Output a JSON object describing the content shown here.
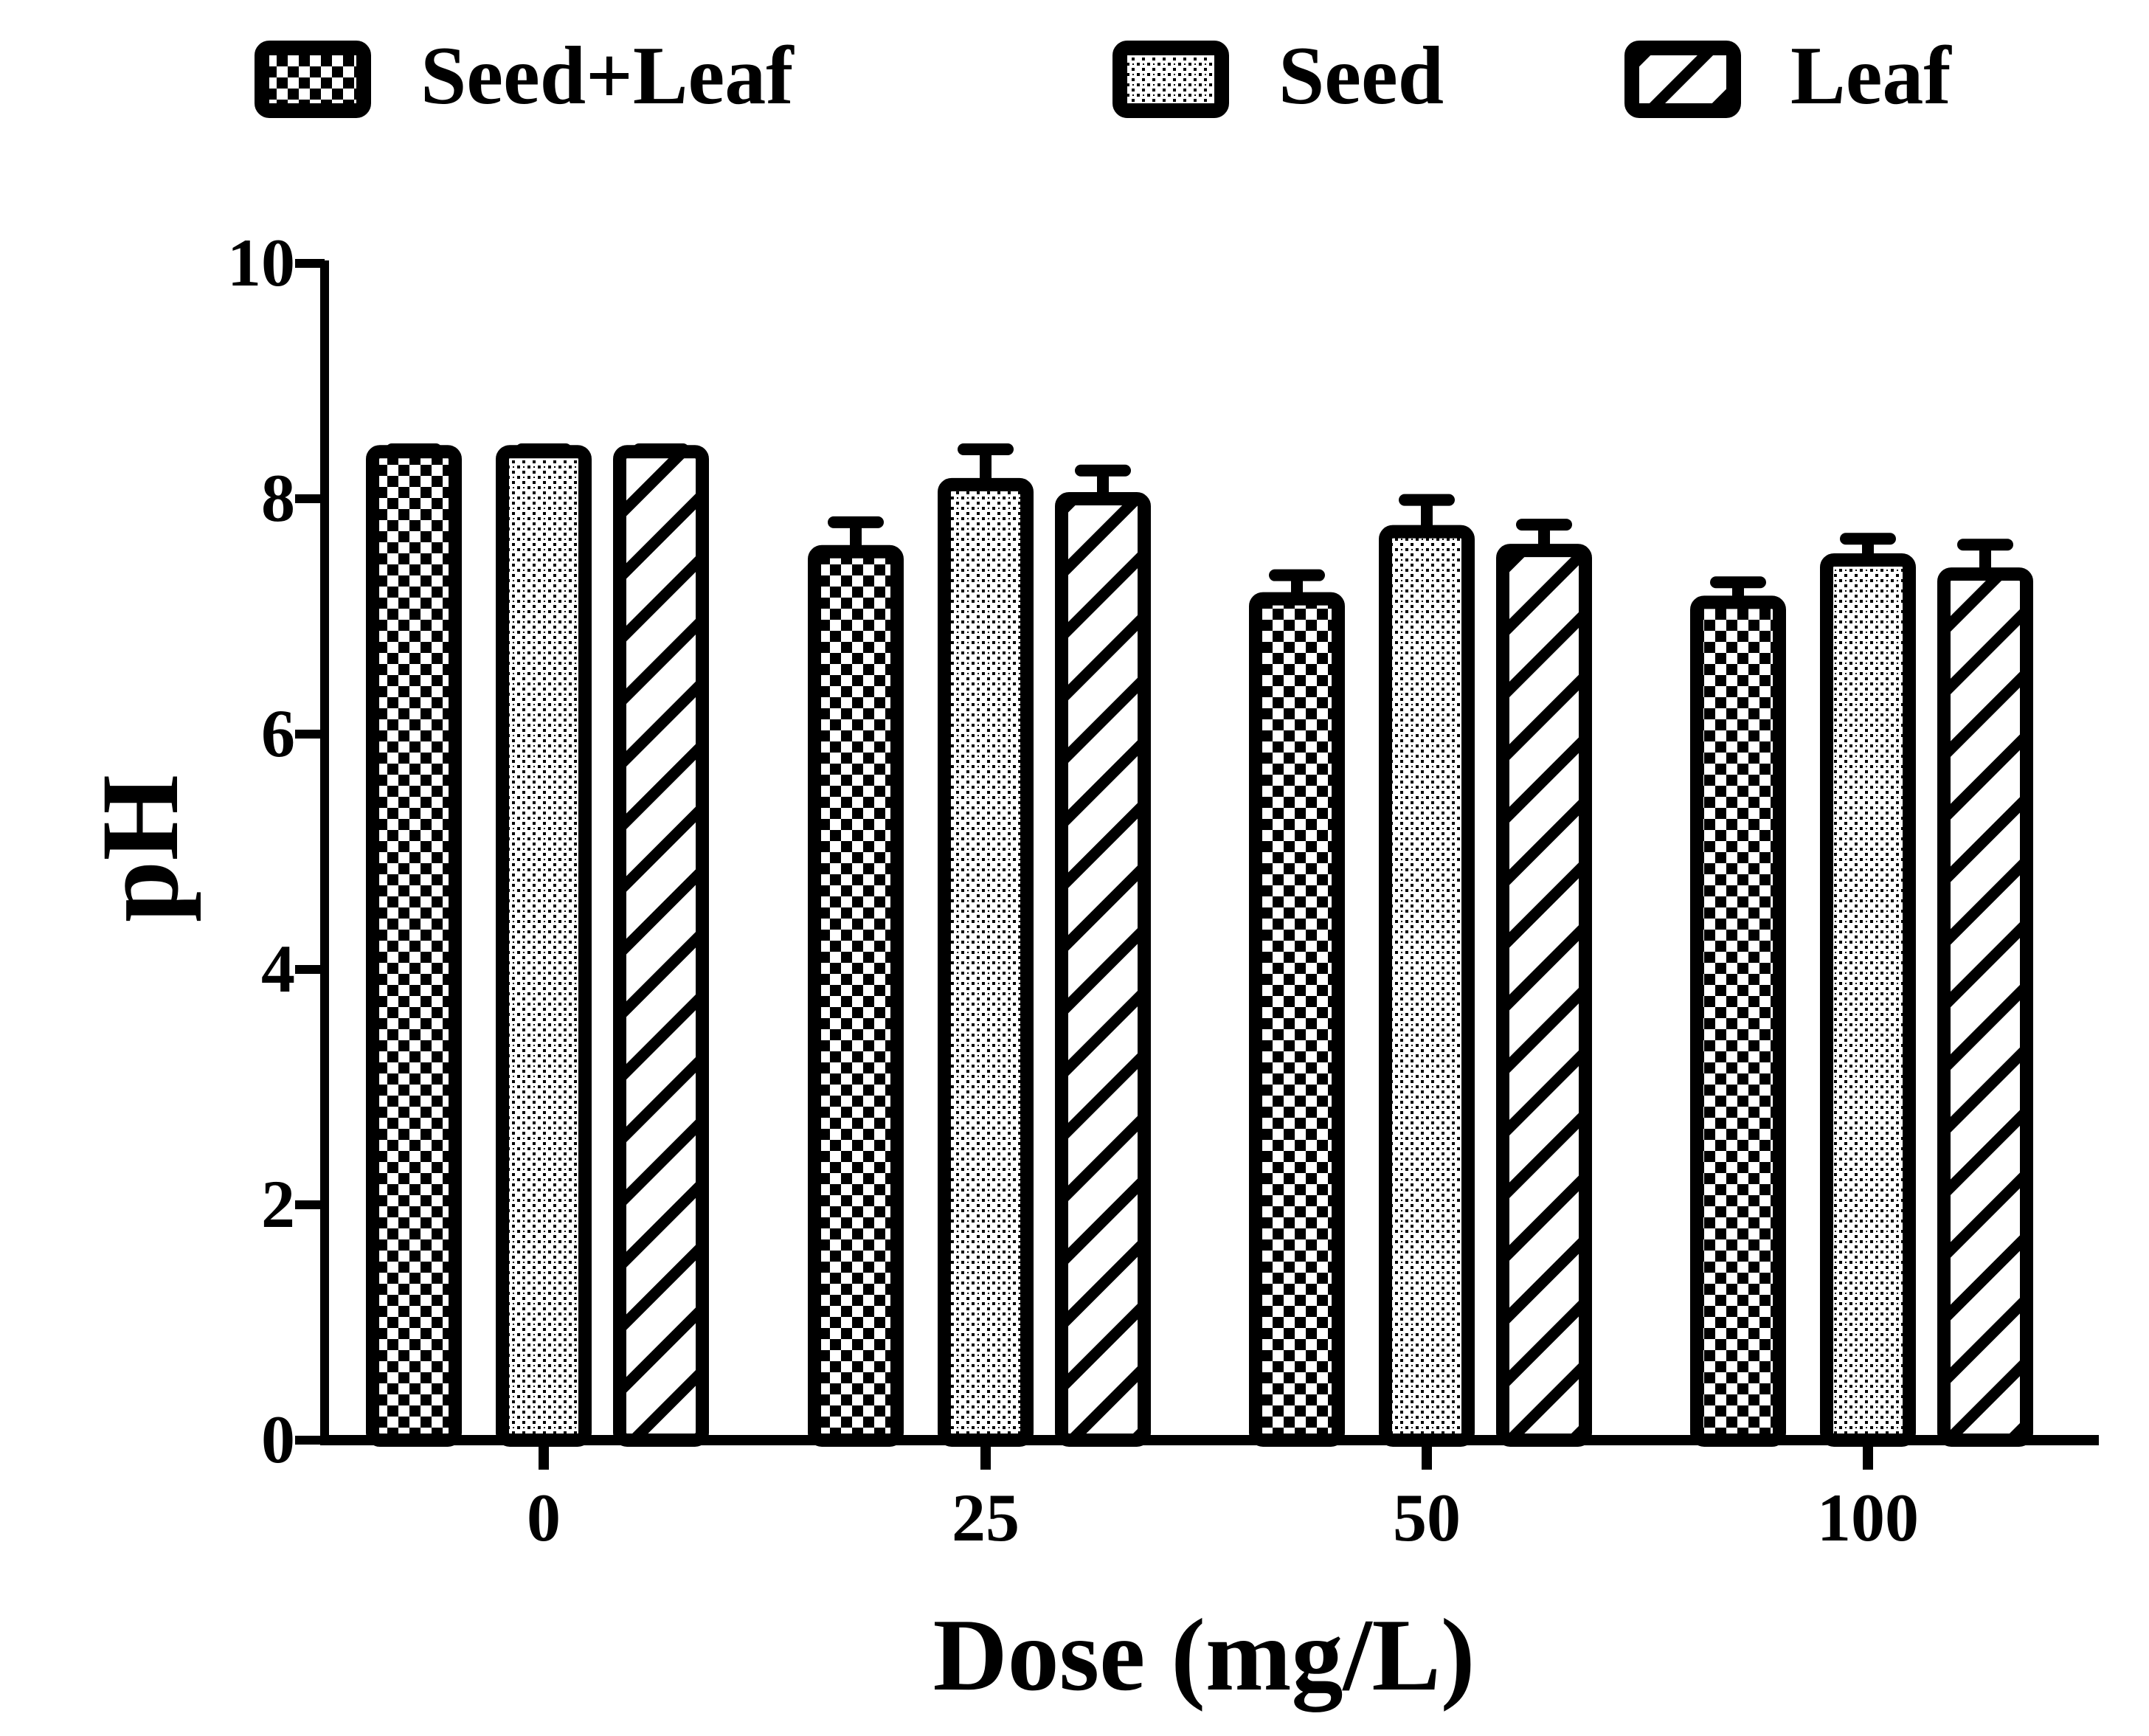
{
  "chart_data": {
    "type": "bar",
    "title": "",
    "xlabel": "Dose (mg/L)",
    "ylabel": "pH",
    "categories": [
      "0",
      "25",
      "50",
      "100"
    ],
    "series": [
      {
        "name": "Seed+Leaf",
        "pattern": "checker",
        "values": [
          8.4,
          7.55,
          7.15,
          7.12
        ],
        "errors": [
          0.02,
          0.25,
          0.2,
          0.17
        ]
      },
      {
        "name": "Seed",
        "pattern": "dots",
        "values": [
          8.4,
          8.12,
          7.72,
          7.48
        ],
        "errors": [
          0.02,
          0.3,
          0.27,
          0.18
        ]
      },
      {
        "name": "Leaf",
        "pattern": "hatch",
        "values": [
          8.4,
          8.0,
          7.56,
          7.36
        ],
        "errors": [
          0.02,
          0.24,
          0.22,
          0.25
        ]
      }
    ],
    "ylim": [
      0,
      10
    ],
    "yticks": [
      "0",
      "2",
      "4",
      "6",
      "8",
      "10"
    ],
    "legend_position": "top",
    "grid": false,
    "colors": {
      "ink": "#000000",
      "fill": "#ffffff"
    }
  }
}
